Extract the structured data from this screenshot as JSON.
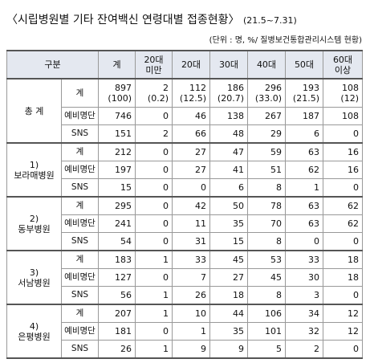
{
  "header": {
    "title": "〈시립병원별 기타 잔여백신 연령대별 접종현황〉",
    "period": "(21.5~7.31)",
    "unit": "(단위 : 명, %/ 질병보건통합관리시스템 현황)"
  },
  "table": {
    "columns": [
      "구분",
      "계",
      "20대\n미만",
      "20대",
      "30대",
      "40대",
      "50대",
      "60대\n이상"
    ],
    "groups": [
      {
        "number": "총 계",
        "rows": [
          {
            "label": "계",
            "cells": [
              "897\n(100)",
              "2\n(0.2)",
              "112\n(12.5)",
              "186\n(20.7)",
              "296\n(33.0)",
              "193\n(21.5)",
              "108\n(12)"
            ]
          },
          {
            "label": "예비명단",
            "cells": [
              "746",
              "0",
              "46",
              "138",
              "267",
              "187",
              "108"
            ]
          },
          {
            "label": "SNS",
            "cells": [
              "151",
              "2",
              "66",
              "48",
              "29",
              "6",
              "0"
            ]
          }
        ]
      },
      {
        "number": "1)",
        "name": "보라매병원",
        "rows": [
          {
            "label": "계",
            "cells": [
              "212",
              "0",
              "27",
              "47",
              "59",
              "63",
              "16"
            ]
          },
          {
            "label": "예비명단",
            "cells": [
              "197",
              "0",
              "27",
              "41",
              "51",
              "62",
              "16"
            ]
          },
          {
            "label": "SNS",
            "cells": [
              "15",
              "0",
              "0",
              "6",
              "8",
              "1",
              "0"
            ]
          }
        ]
      },
      {
        "number": "2)",
        "name": "동부병원",
        "rows": [
          {
            "label": "계",
            "cells": [
              "295",
              "0",
              "42",
              "50",
              "78",
              "63",
              "62"
            ]
          },
          {
            "label": "예비명단",
            "cells": [
              "241",
              "0",
              "11",
              "35",
              "70",
              "63",
              "62"
            ]
          },
          {
            "label": "SNS",
            "cells": [
              "54",
              "0",
              "31",
              "15",
              "8",
              "0",
              "0"
            ]
          }
        ]
      },
      {
        "number": "3)",
        "name": "서남병원",
        "rows": [
          {
            "label": "계",
            "cells": [
              "183",
              "1",
              "33",
              "45",
              "53",
              "33",
              "18"
            ]
          },
          {
            "label": "예비명단",
            "cells": [
              "127",
              "0",
              "7",
              "27",
              "45",
              "30",
              "18"
            ]
          },
          {
            "label": "SNS",
            "cells": [
              "56",
              "1",
              "26",
              "18",
              "8",
              "3",
              "0"
            ]
          }
        ]
      },
      {
        "number": "4)",
        "name": "은평병원",
        "rows": [
          {
            "label": "계",
            "cells": [
              "207",
              "1",
              "10",
              "44",
              "106",
              "34",
              "12"
            ]
          },
          {
            "label": "예비명단",
            "cells": [
              "181",
              "0",
              "1",
              "35",
              "101",
              "32",
              "12"
            ]
          },
          {
            "label": "SNS",
            "cells": [
              "26",
              "1",
              "9",
              "9",
              "5",
              "2",
              "0"
            ]
          }
        ]
      }
    ]
  }
}
